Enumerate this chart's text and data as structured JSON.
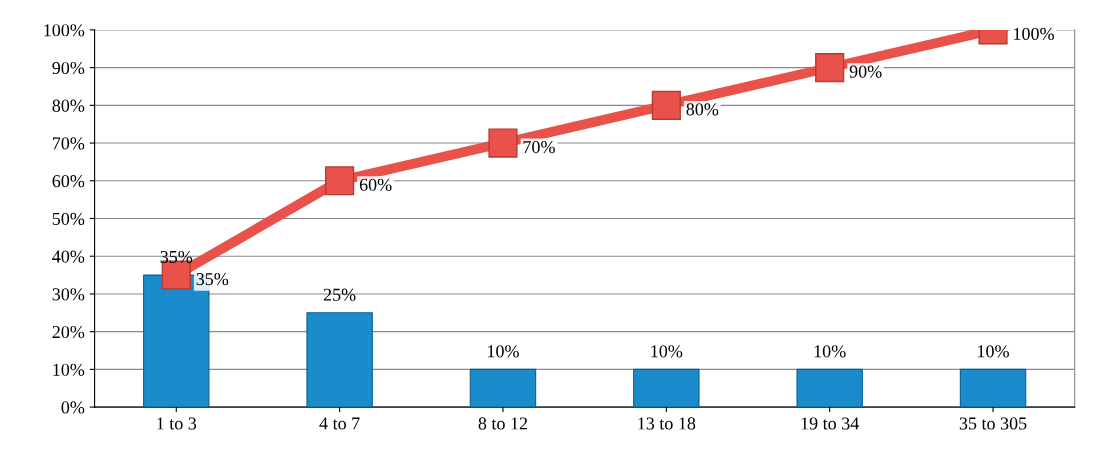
{
  "chart_data": {
    "type": "bar",
    "categories": [
      "1 to 3",
      "4 to 7",
      "8 to 12",
      "13 to 18",
      "19 to 34",
      "35 to 305"
    ],
    "series": [
      {
        "color": "#1a8ccc",
        "values": [
          35,
          25,
          10,
          10,
          10,
          10
        ],
        "value_labels": [
          "35%",
          "25%",
          "10%",
          "10%",
          "10%",
          "10%"
        ]
      },
      {
        "type": "line",
        "color": "#e8524a",
        "marker": "square",
        "values": [
          35,
          60,
          70,
          80,
          90,
          100
        ],
        "value_labels": [
          "35%",
          "60%",
          "70%",
          "80%",
          "90%",
          "100%"
        ]
      }
    ],
    "ylim": [
      0,
      100
    ],
    "yticks": [
      {
        "value": 0,
        "label": "0%"
      },
      {
        "value": 10,
        "label": "10%"
      },
      {
        "value": 20,
        "label": "20%"
      },
      {
        "value": 30,
        "label": "30%"
      },
      {
        "value": 40,
        "label": "40%"
      },
      {
        "value": 50,
        "label": "50%"
      },
      {
        "value": 60,
        "label": "60%"
      },
      {
        "value": 70,
        "label": "70%"
      },
      {
        "value": 80,
        "label": "80%"
      },
      {
        "value": 90,
        "label": "90%"
      },
      {
        "value": 100,
        "label": "100%"
      }
    ],
    "grid": "y",
    "legend": false
  }
}
